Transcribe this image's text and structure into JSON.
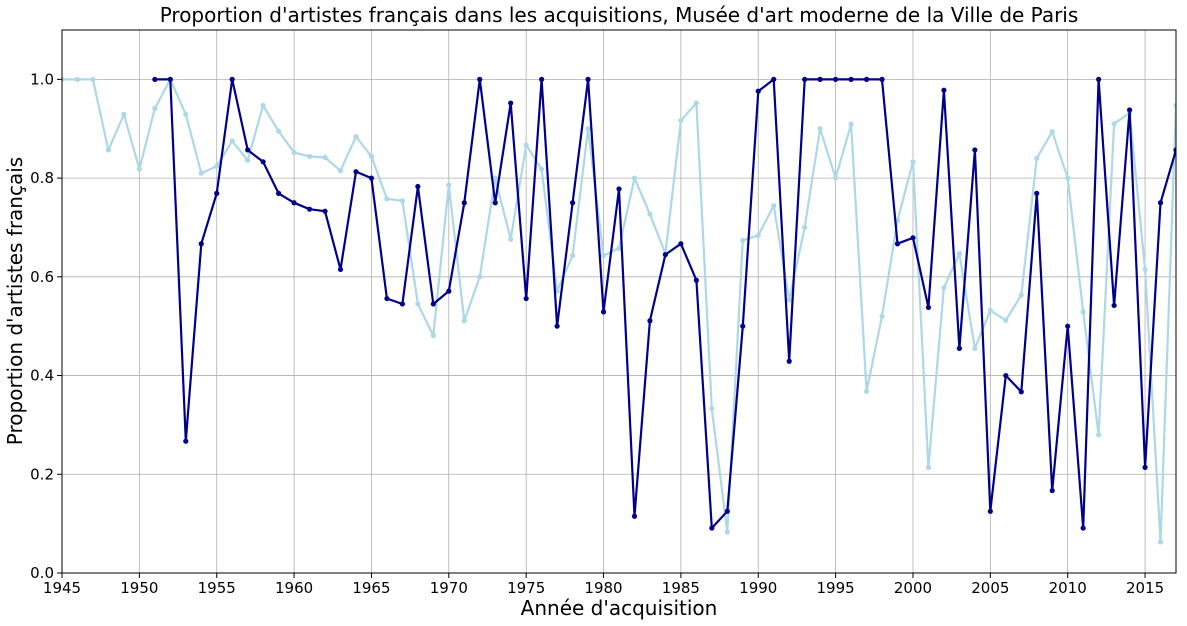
{
  "chart_data": {
    "type": "line",
    "title": "Proportion d'artistes français dans les acquisitions, Musée d'art moderne de la Ville de Paris",
    "xlabel": "Année d'acquisition",
    "ylabel": "Proportion d'artistes français",
    "xlim": [
      1945,
      2017
    ],
    "ylim": [
      0.0,
      1.1
    ],
    "xticks": [
      "1945",
      "1950",
      "1955",
      "1960",
      "1965",
      "1970",
      "1975",
      "1980",
      "1985",
      "1990",
      "1995",
      "2000",
      "2005",
      "2010",
      "2015"
    ],
    "yticks": [
      "0.0",
      "0.2",
      "0.4",
      "0.6",
      "0.8",
      "1.0"
    ],
    "grid": true,
    "series": [
      {
        "color": "#add8e6",
        "x": [
          1945,
          1946,
          1947,
          1948,
          1949,
          1950,
          1951,
          1952,
          1953,
          1954,
          1955,
          1956,
          1957,
          1958,
          1959,
          1960,
          1961,
          1962,
          1963,
          1964,
          1965,
          1966,
          1967,
          1968,
          1969,
          1970,
          1971,
          1972,
          1973,
          1974,
          1975,
          1976,
          1977,
          1978,
          1979,
          1980,
          1981,
          1982,
          1983,
          1984,
          1985,
          1986,
          1987,
          1988,
          1989,
          1990,
          1991,
          1992,
          1993,
          1994,
          1995,
          1996,
          1997,
          1998,
          1999,
          2000,
          2001,
          2002,
          2003,
          2004,
          2005,
          2006,
          2007,
          2008,
          2009,
          2010,
          2011,
          2012,
          2013,
          2014,
          2015,
          2016,
          2017
        ],
        "values": [
          1.0,
          1.0,
          1.0,
          0.857,
          0.929,
          0.818,
          0.941,
          1.0,
          0.929,
          0.81,
          0.824,
          0.875,
          0.836,
          0.947,
          0.895,
          0.852,
          0.844,
          0.842,
          0.815,
          0.884,
          0.844,
          0.758,
          0.754,
          0.545,
          0.481,
          0.786,
          0.511,
          0.6,
          0.8,
          0.676,
          0.867,
          0.818,
          0.571,
          0.643,
          0.9,
          0.643,
          0.658,
          0.8,
          0.727,
          0.647,
          0.917,
          0.952,
          0.333,
          0.083,
          0.674,
          0.684,
          0.744,
          0.553,
          0.7,
          0.9,
          0.8,
          0.909,
          0.368,
          0.52,
          0.714,
          0.833,
          0.214,
          0.578,
          0.647,
          0.455,
          0.532,
          0.512,
          0.563,
          0.84,
          0.894,
          0.8,
          0.529,
          0.28,
          0.91,
          0.932,
          0.615,
          0.063,
          0.947
        ]
      },
      {
        "color": "#00008b",
        "x": [
          1951,
          1952,
          1953,
          1954,
          1955,
          1956,
          1957,
          1958,
          1959,
          1960,
          1961,
          1962,
          1963,
          1964,
          1965,
          1966,
          1967,
          1968,
          1969,
          1970,
          1971,
          1972,
          1973,
          1974,
          1975,
          1976,
          1977,
          1978,
          1979,
          1980,
          1981,
          1982,
          1983,
          1984,
          1985,
          1986,
          1987,
          1988,
          1989,
          1990,
          1991,
          1992,
          1993,
          1994,
          1995,
          1996,
          1997,
          1998,
          1999,
          2000,
          2001,
          2002,
          2003,
          2004,
          2005,
          2006,
          2007,
          2008,
          2009,
          2010,
          2011,
          2012,
          2013,
          2014,
          2015,
          2016,
          2017
        ],
        "values": [
          1.0,
          1.0,
          0.267,
          0.667,
          0.769,
          1.0,
          0.857,
          0.833,
          0.769,
          0.75,
          0.737,
          0.733,
          0.615,
          0.813,
          0.8,
          0.556,
          0.545,
          0.783,
          0.545,
          0.571,
          0.75,
          1.0,
          0.75,
          0.952,
          0.556,
          1.0,
          0.5,
          0.75,
          1.0,
          0.529,
          0.778,
          0.115,
          0.511,
          0.645,
          0.667,
          0.593,
          0.091,
          0.125,
          0.5,
          0.976,
          1.0,
          0.429,
          1.0,
          1.0,
          1.0,
          1.0,
          1.0,
          1.0,
          0.667,
          0.679,
          0.538,
          0.978,
          0.455,
          0.857,
          0.125,
          0.4,
          0.367,
          0.769,
          0.167,
          0.5,
          0.091,
          1.0,
          0.542,
          0.938,
          0.214,
          0.75,
          0.857
        ]
      }
    ]
  }
}
